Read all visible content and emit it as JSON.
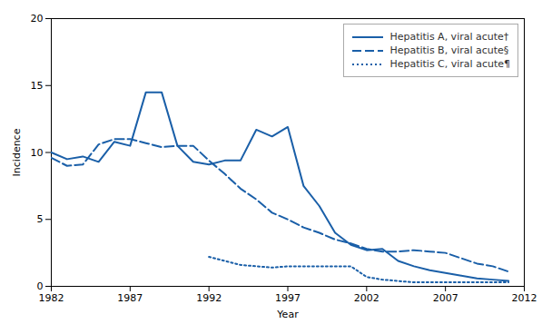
{
  "chart_data": {
    "type": "line",
    "xlabel": "Year",
    "ylabel": "Incidence",
    "x": [
      1982,
      1983,
      1984,
      1985,
      1986,
      1987,
      1988,
      1989,
      1990,
      1991,
      1992,
      1993,
      1994,
      1995,
      1996,
      1997,
      1998,
      1999,
      2000,
      2001,
      2002,
      2003,
      2004,
      2005,
      2006,
      2007,
      2008,
      2009,
      2010,
      2011
    ],
    "series": [
      {
        "name": "Hepatitis A, viral acute†",
        "color": "#1a5fa8",
        "line_style": "solid",
        "values": [
          10.0,
          9.5,
          9.7,
          9.3,
          10.8,
          10.5,
          14.5,
          14.5,
          10.5,
          9.3,
          9.1,
          9.4,
          9.4,
          11.7,
          11.2,
          11.9,
          7.5,
          6.0,
          4.0,
          3.1,
          2.7,
          2.8,
          1.9,
          1.5,
          1.2,
          1.0,
          0.8,
          0.6,
          0.5,
          0.4
        ]
      },
      {
        "name": "Hepatitis B, viral acute§",
        "color": "#1a5fa8",
        "line_style": "dashed",
        "values": [
          9.6,
          9.0,
          9.1,
          10.6,
          11.0,
          11.0,
          10.7,
          10.4,
          10.5,
          10.5,
          9.4,
          8.4,
          7.3,
          6.5,
          5.5,
          5.0,
          4.4,
          4.0,
          3.5,
          3.2,
          2.8,
          2.6,
          2.6,
          2.7,
          2.6,
          2.5,
          2.1,
          1.7,
          1.5,
          1.1
        ]
      },
      {
        "name": "Hepatitis C, viral acute¶",
        "color": "#1a5fa8",
        "line_style": "dotted",
        "values": [
          null,
          null,
          null,
          null,
          null,
          null,
          null,
          null,
          null,
          null,
          2.2,
          1.9,
          1.6,
          1.5,
          1.4,
          1.5,
          1.5,
          1.5,
          1.5,
          1.5,
          0.7,
          0.5,
          0.4,
          0.3,
          0.3,
          0.3,
          0.3,
          0.3,
          0.3,
          0.3
        ]
      }
    ],
    "xlim": [
      1982,
      2012
    ],
    "xticks": [
      1982,
      1987,
      1992,
      1997,
      2002,
      2007,
      2012
    ],
    "ylim": [
      0,
      20
    ],
    "yticks": [
      0,
      5,
      10,
      15,
      20
    ],
    "grid": false,
    "legend": "upper right"
  }
}
